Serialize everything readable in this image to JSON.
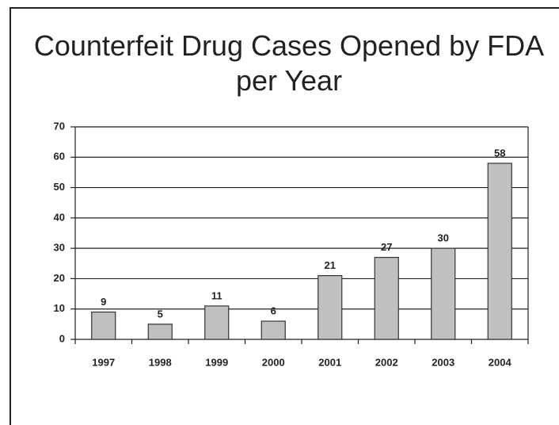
{
  "chart_data": {
    "type": "bar",
    "title": "Counterfeit Drug Cases Opened by FDA per Year",
    "categories": [
      "1997",
      "1998",
      "1999",
      "2000",
      "2001",
      "2002",
      "2003",
      "2004"
    ],
    "values": [
      9,
      5,
      11,
      6,
      21,
      27,
      30,
      58
    ],
    "color": "#c0c0c0",
    "ylim": [
      0,
      70
    ],
    "yticks": [
      0,
      10,
      20,
      30,
      40,
      50,
      60,
      70
    ],
    "grid": true
  }
}
